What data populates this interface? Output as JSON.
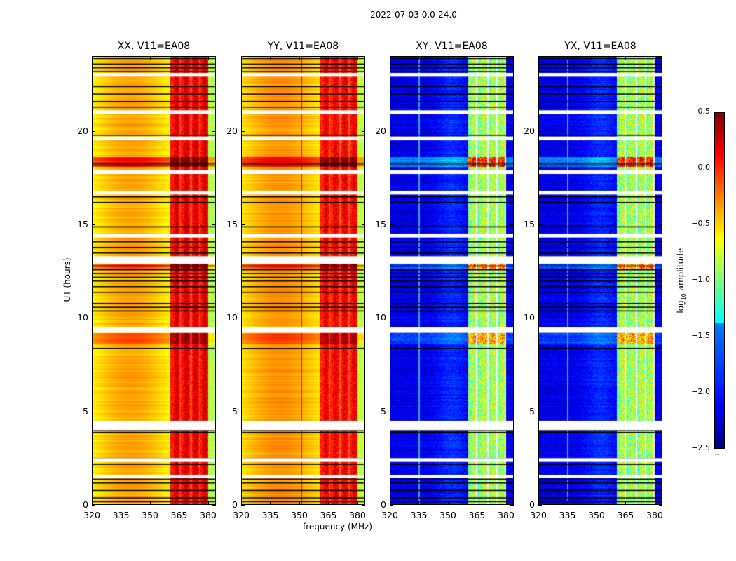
{
  "chart_data": {
    "type": "heatmap",
    "title": "2022-07-03 0.0-24.0",
    "xlabel": "frequency (MHz)",
    "ylabel": "UT (hours)",
    "xlim": [
      320,
      384
    ],
    "ylim": [
      0,
      24
    ],
    "xticks": [
      "320",
      "335",
      "350",
      "365",
      "380"
    ],
    "xtick_values": [
      320,
      335,
      350,
      365,
      380
    ],
    "yticks": [
      "0",
      "5",
      "10",
      "15",
      "20"
    ],
    "ytick_values": [
      0,
      5,
      10,
      15,
      20
    ],
    "panels": [
      {
        "title": "XX, V11=EA08",
        "base": -0.55,
        "band": [
          360.4,
          380
        ],
        "band_level": 0.15,
        "stripe_gaps": [
          365.5,
          371,
          375.5
        ],
        "rfi_line": null
      },
      {
        "title": "YY, V11=EA08",
        "base": -0.5,
        "band": [
          360.4,
          380
        ],
        "band_level": 0.1,
        "stripe_gaps": [
          365.5,
          371,
          375.5
        ],
        "rfi_line": 351
      },
      {
        "title": "XY, V11=EA08",
        "base": -2.2,
        "band": [
          360.4,
          379.6
        ],
        "band_level": -0.9,
        "stripe_gaps": [
          364.8,
          370.6,
          375.2,
          379.6
        ],
        "rfi_line": 335
      },
      {
        "title": "YX, V11=EA08",
        "base": -2.2,
        "band": [
          360.4,
          379.6
        ],
        "band_level": -0.9,
        "stripe_gaps": [
          364.8,
          370.6,
          375.2,
          379.6
        ],
        "rfi_line": 335
      }
    ],
    "flagged_gaps_ut": [
      [
        22.9,
        23.1
      ],
      [
        20.9,
        21.1
      ],
      [
        19.5,
        19.7
      ],
      [
        17.7,
        17.9
      ],
      [
        16.6,
        16.8
      ],
      [
        14.3,
        14.5
      ],
      [
        12.9,
        13.3
      ],
      [
        9.2,
        9.5
      ],
      [
        4.0,
        4.5
      ],
      [
        2.3,
        2.5
      ],
      [
        1.45,
        1.6
      ]
    ],
    "flagged_lines_ut": [
      23.9,
      23.6,
      23.4,
      23.2,
      22.4,
      22.0,
      21.6,
      21.3,
      19.8,
      18.3,
      18.2,
      16.5,
      16.2,
      14.9,
      14.1,
      13.8,
      13.5,
      12.8,
      12.6,
      12.4,
      12.2,
      12.0,
      11.7,
      11.4,
      10.8,
      10.6,
      10.4,
      8.4,
      4.0,
      3.9,
      2.5,
      2.2,
      1.4,
      1.2,
      0.8,
      0.4,
      0.2
    ],
    "bright_events_ut": [
      [
        18.1,
        18.6,
        0.45
      ],
      [
        8.6,
        9.2,
        0.25
      ],
      [
        12.6,
        12.9,
        0.3
      ]
    ],
    "colorbar": {
      "label": "log10 amplitude",
      "label_main": "log",
      "label_sub": "10",
      "label_rest": " amplitude",
      "range": [
        -2.5,
        0.5
      ],
      "ticks": [
        "0.5",
        "0.0",
        "−0.5",
        "−1.0",
        "−1.5",
        "−2.0",
        "−2.5"
      ],
      "tick_values": [
        0.5,
        0.0,
        -0.5,
        -1.0,
        -1.5,
        -2.0,
        -2.5
      ],
      "colormap": "jet"
    }
  }
}
